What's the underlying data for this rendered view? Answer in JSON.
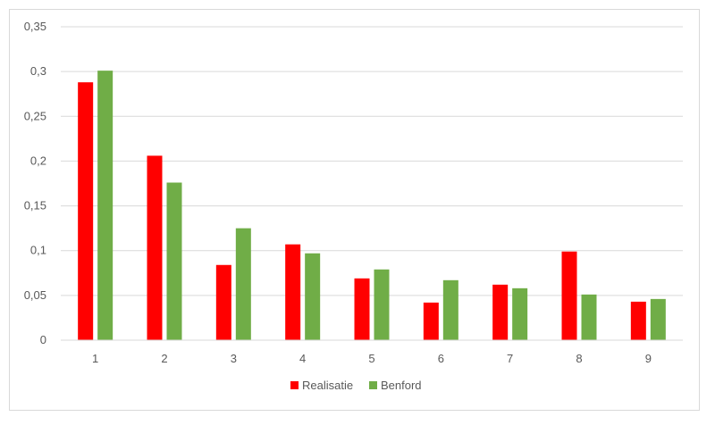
{
  "chart_data": {
    "type": "bar",
    "categories": [
      "1",
      "2",
      "3",
      "4",
      "5",
      "6",
      "7",
      "8",
      "9"
    ],
    "series": [
      {
        "name": "Realisatie",
        "color": "#ff0000",
        "values": [
          0.288,
          0.206,
          0.084,
          0.107,
          0.069,
          0.042,
          0.062,
          0.099,
          0.043
        ]
      },
      {
        "name": "Benford",
        "color": "#70ad47",
        "values": [
          0.301,
          0.176,
          0.125,
          0.097,
          0.079,
          0.067,
          0.058,
          0.051,
          0.046
        ]
      }
    ],
    "ylim": [
      0,
      0.35
    ],
    "yticks": [
      0,
      0.05,
      0.1,
      0.15,
      0.2,
      0.25,
      0.3,
      0.35
    ],
    "ytick_labels": [
      "0",
      "0,05",
      "0,1",
      "0,15",
      "0,2",
      "0,25",
      "0,3",
      "0,35"
    ],
    "grid": true,
    "legend_position": "bottom",
    "title": "",
    "xlabel": "",
    "ylabel": ""
  }
}
